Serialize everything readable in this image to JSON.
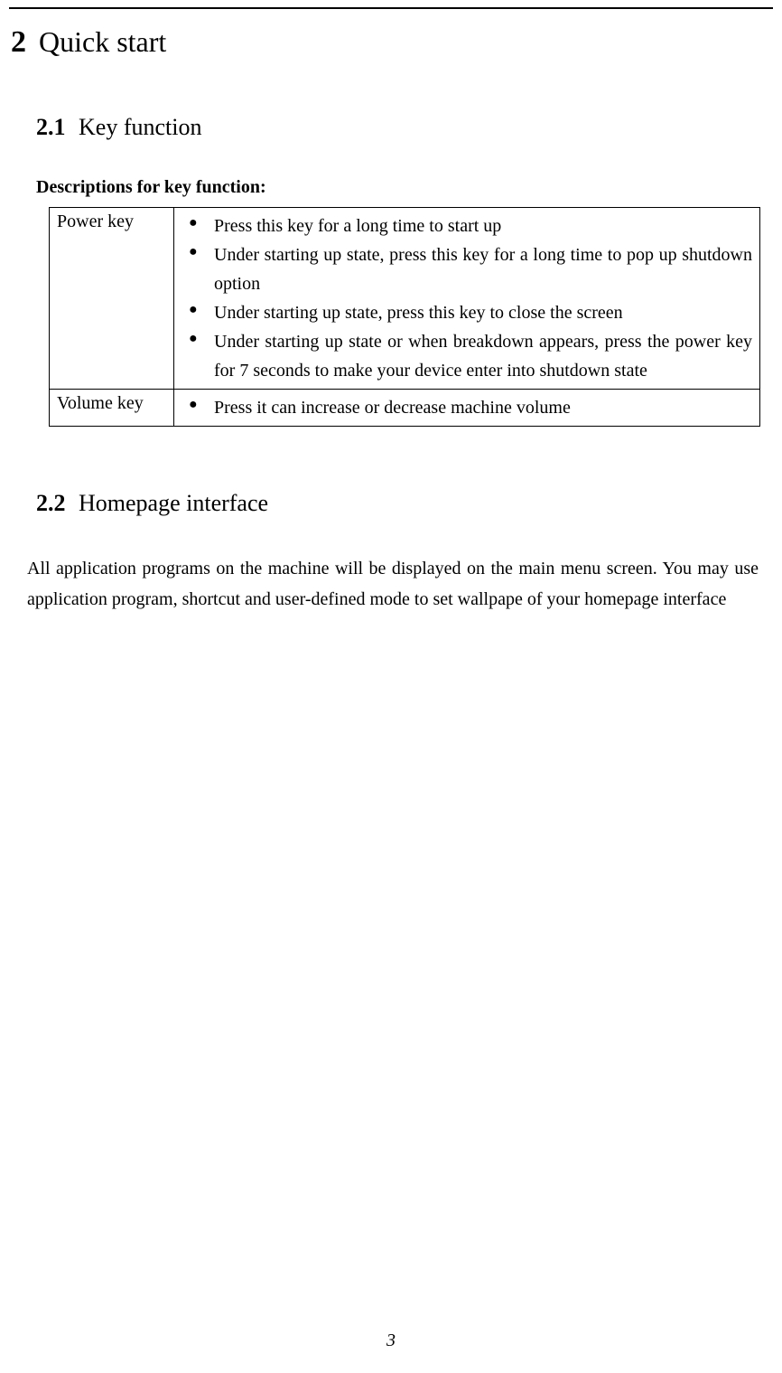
{
  "page": {
    "number": "3"
  },
  "h1": {
    "num": "2",
    "title": "Quick start"
  },
  "s21": {
    "num": "2.1",
    "title": "Key function",
    "desc_label": "Descriptions for key function:"
  },
  "table": {
    "rows": [
      {
        "key": "Power key",
        "items": [
          "Press this key for a long time to start up",
          "Under starting up state, press this key for a long time to pop up shutdown option",
          "Under starting up state, press this key to close the screen",
          "Under starting up state or when breakdown appears, press the power key for 7 seconds to make your device enter into shutdown state"
        ]
      },
      {
        "key": "Volume key",
        "items": [
          "Press it can increase or decrease machine volume"
        ]
      }
    ]
  },
  "s22": {
    "num": "2.2",
    "title": "Homepage interface",
    "para": "All application programs on the machine will be displayed on the main menu screen. You may use application program, shortcut and user-defined mode to set wallpape of your homepage interface"
  }
}
